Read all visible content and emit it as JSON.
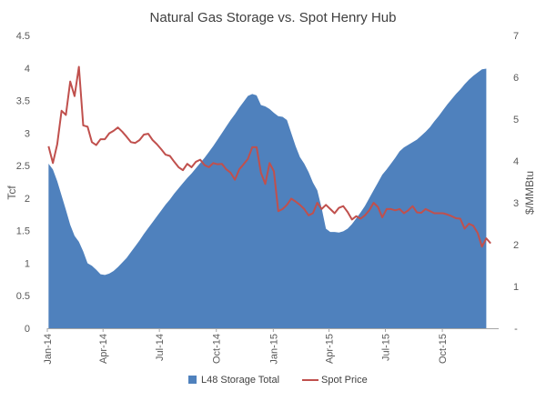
{
  "chart_data": {
    "type": "area+line",
    "title": "Natural Gas Storage vs. Spot Henry Hub",
    "y_left": {
      "label": "Tcf",
      "range": [
        0,
        4.5
      ],
      "ticks": [
        "0",
        "0.5",
        "1",
        "1.5",
        "2",
        "2.5",
        "3",
        "3.5",
        "4",
        "4.5"
      ]
    },
    "y_right": {
      "label": "$/MMBtu",
      "range": [
        0,
        7
      ],
      "ticks": [
        "-",
        "1",
        "2",
        "3",
        "4",
        "5",
        "6",
        "7"
      ]
    },
    "x_axis": {
      "range": [
        "2014-01-01",
        "2015-12-31"
      ],
      "ticks": [
        "Jan-14",
        "Apr-14",
        "Jul-14",
        "Oct-14",
        "Jan-15",
        "Apr-15",
        "Jul-15",
        "Oct-15"
      ],
      "tick_dates": [
        "2014-01-01",
        "2014-04-01",
        "2014-07-01",
        "2014-10-01",
        "2015-01-01",
        "2015-04-01",
        "2015-07-01",
        "2015-10-01"
      ]
    },
    "grid": false,
    "legend_position": "bottom",
    "colors": {
      "storage": "#4f81bd",
      "price": "#c0504d"
    },
    "series": [
      {
        "name": "L48 Storage Total",
        "type": "area",
        "axis": "left",
        "points": [
          [
            "2014-01-03",
            2.53
          ],
          [
            "2014-01-10",
            2.44
          ],
          [
            "2014-01-17",
            2.26
          ],
          [
            "2014-01-24",
            2.04
          ],
          [
            "2014-01-31",
            1.82
          ],
          [
            "2014-02-07",
            1.59
          ],
          [
            "2014-02-14",
            1.42
          ],
          [
            "2014-02-21",
            1.33
          ],
          [
            "2014-02-28",
            1.18
          ],
          [
            "2014-03-07",
            1.0
          ],
          [
            "2014-03-14",
            0.96
          ],
          [
            "2014-03-21",
            0.9
          ],
          [
            "2014-03-28",
            0.83
          ],
          [
            "2014-04-04",
            0.82
          ],
          [
            "2014-04-11",
            0.84
          ],
          [
            "2014-04-18",
            0.88
          ],
          [
            "2014-04-25",
            0.94
          ],
          [
            "2014-05-02",
            1.01
          ],
          [
            "2014-05-09",
            1.08
          ],
          [
            "2014-05-16",
            1.17
          ],
          [
            "2014-05-23",
            1.26
          ],
          [
            "2014-05-30",
            1.35
          ],
          [
            "2014-06-06",
            1.45
          ],
          [
            "2014-06-13",
            1.54
          ],
          [
            "2014-06-20",
            1.63
          ],
          [
            "2014-06-27",
            1.72
          ],
          [
            "2014-07-04",
            1.81
          ],
          [
            "2014-07-11",
            1.9
          ],
          [
            "2014-07-18",
            1.98
          ],
          [
            "2014-07-25",
            2.07
          ],
          [
            "2014-08-01",
            2.15
          ],
          [
            "2014-08-08",
            2.23
          ],
          [
            "2014-08-15",
            2.31
          ],
          [
            "2014-08-22",
            2.38
          ],
          [
            "2014-08-29",
            2.46
          ],
          [
            "2014-09-05",
            2.54
          ],
          [
            "2014-09-12",
            2.62
          ],
          [
            "2014-09-19",
            2.71
          ],
          [
            "2014-09-26",
            2.8
          ],
          [
            "2014-10-03",
            2.9
          ],
          [
            "2014-10-10",
            3.0
          ],
          [
            "2014-10-17",
            3.1
          ],
          [
            "2014-10-24",
            3.2
          ],
          [
            "2014-10-31",
            3.29
          ],
          [
            "2014-11-07",
            3.39
          ],
          [
            "2014-11-14",
            3.48
          ],
          [
            "2014-11-21",
            3.57
          ],
          [
            "2014-11-28",
            3.6
          ],
          [
            "2014-12-05",
            3.58
          ],
          [
            "2014-12-12",
            3.43
          ],
          [
            "2014-12-19",
            3.41
          ],
          [
            "2014-12-26",
            3.37
          ],
          [
            "2015-01-02",
            3.31
          ],
          [
            "2015-01-09",
            3.26
          ],
          [
            "2015-01-16",
            3.25
          ],
          [
            "2015-01-23",
            3.2
          ],
          [
            "2015-01-30",
            3.0
          ],
          [
            "2015-02-06",
            2.8
          ],
          [
            "2015-02-13",
            2.63
          ],
          [
            "2015-02-20",
            2.53
          ],
          [
            "2015-02-27",
            2.4
          ],
          [
            "2015-03-06",
            2.24
          ],
          [
            "2015-03-13",
            2.12
          ],
          [
            "2015-03-20",
            1.85
          ],
          [
            "2015-03-27",
            1.53
          ],
          [
            "2015-04-03",
            1.48
          ],
          [
            "2015-04-10",
            1.48
          ],
          [
            "2015-04-17",
            1.47
          ],
          [
            "2015-04-24",
            1.49
          ],
          [
            "2015-05-01",
            1.53
          ],
          [
            "2015-05-08",
            1.6
          ],
          [
            "2015-05-15",
            1.69
          ],
          [
            "2015-05-22",
            1.78
          ],
          [
            "2015-05-29",
            1.88
          ],
          [
            "2015-06-05",
            2.0
          ],
          [
            "2015-06-12",
            2.12
          ],
          [
            "2015-06-19",
            2.24
          ],
          [
            "2015-06-26",
            2.36
          ],
          [
            "2015-07-03",
            2.44
          ],
          [
            "2015-07-10",
            2.53
          ],
          [
            "2015-07-17",
            2.62
          ],
          [
            "2015-07-24",
            2.72
          ],
          [
            "2015-07-31",
            2.78
          ],
          [
            "2015-08-07",
            2.82
          ],
          [
            "2015-08-14",
            2.86
          ],
          [
            "2015-08-21",
            2.9
          ],
          [
            "2015-08-28",
            2.96
          ],
          [
            "2015-09-04",
            3.02
          ],
          [
            "2015-09-11",
            3.09
          ],
          [
            "2015-09-18",
            3.18
          ],
          [
            "2015-09-25",
            3.26
          ],
          [
            "2015-10-02",
            3.35
          ],
          [
            "2015-10-09",
            3.44
          ],
          [
            "2015-10-16",
            3.52
          ],
          [
            "2015-10-23",
            3.6
          ],
          [
            "2015-10-30",
            3.67
          ],
          [
            "2015-11-06",
            3.75
          ],
          [
            "2015-11-13",
            3.82
          ],
          [
            "2015-11-20",
            3.88
          ],
          [
            "2015-11-27",
            3.93
          ],
          [
            "2015-12-04",
            3.98
          ],
          [
            "2015-12-11",
            3.99
          ]
        ]
      },
      {
        "name": "Spot Price",
        "type": "line",
        "axis": "right",
        "points": [
          [
            "2014-01-03",
            4.35
          ],
          [
            "2014-01-10",
            3.95
          ],
          [
            "2014-01-17",
            4.4
          ],
          [
            "2014-01-24",
            5.2
          ],
          [
            "2014-01-31",
            5.1
          ],
          [
            "2014-02-07",
            5.9
          ],
          [
            "2014-02-14",
            5.55
          ],
          [
            "2014-02-21",
            6.25
          ],
          [
            "2014-02-28",
            4.85
          ],
          [
            "2014-03-07",
            4.82
          ],
          [
            "2014-03-14",
            4.45
          ],
          [
            "2014-03-21",
            4.38
          ],
          [
            "2014-03-28",
            4.52
          ],
          [
            "2014-04-04",
            4.52
          ],
          [
            "2014-04-11",
            4.66
          ],
          [
            "2014-04-18",
            4.72
          ],
          [
            "2014-04-25",
            4.8
          ],
          [
            "2014-05-02",
            4.7
          ],
          [
            "2014-05-09",
            4.58
          ],
          [
            "2014-05-16",
            4.45
          ],
          [
            "2014-05-23",
            4.43
          ],
          [
            "2014-05-30",
            4.5
          ],
          [
            "2014-06-06",
            4.63
          ],
          [
            "2014-06-13",
            4.65
          ],
          [
            "2014-06-20",
            4.5
          ],
          [
            "2014-06-27",
            4.4
          ],
          [
            "2014-07-04",
            4.28
          ],
          [
            "2014-07-11",
            4.15
          ],
          [
            "2014-07-18",
            4.12
          ],
          [
            "2014-07-25",
            3.98
          ],
          [
            "2014-08-01",
            3.85
          ],
          [
            "2014-08-08",
            3.78
          ],
          [
            "2014-08-15",
            3.93
          ],
          [
            "2014-08-22",
            3.85
          ],
          [
            "2014-08-29",
            3.98
          ],
          [
            "2014-09-05",
            4.03
          ],
          [
            "2014-09-12",
            3.9
          ],
          [
            "2014-09-19",
            3.85
          ],
          [
            "2014-09-26",
            3.95
          ],
          [
            "2014-10-03",
            3.92
          ],
          [
            "2014-10-10",
            3.93
          ],
          [
            "2014-10-17",
            3.8
          ],
          [
            "2014-10-24",
            3.72
          ],
          [
            "2014-10-31",
            3.55
          ],
          [
            "2014-11-07",
            3.8
          ],
          [
            "2014-11-14",
            3.92
          ],
          [
            "2014-11-21",
            4.05
          ],
          [
            "2014-11-28",
            4.33
          ],
          [
            "2014-12-05",
            4.33
          ],
          [
            "2014-12-12",
            3.72
          ],
          [
            "2014-12-19",
            3.45
          ],
          [
            "2014-12-26",
            3.95
          ],
          [
            "2015-01-02",
            3.75
          ],
          [
            "2015-01-09",
            2.8
          ],
          [
            "2015-01-16",
            2.85
          ],
          [
            "2015-01-23",
            2.95
          ],
          [
            "2015-01-30",
            3.1
          ],
          [
            "2015-02-06",
            3.03
          ],
          [
            "2015-02-13",
            2.95
          ],
          [
            "2015-02-20",
            2.85
          ],
          [
            "2015-02-27",
            2.7
          ],
          [
            "2015-03-06",
            2.75
          ],
          [
            "2015-03-13",
            3.0
          ],
          [
            "2015-03-20",
            2.85
          ],
          [
            "2015-03-27",
            2.95
          ],
          [
            "2015-04-03",
            2.85
          ],
          [
            "2015-04-10",
            2.75
          ],
          [
            "2015-04-17",
            2.88
          ],
          [
            "2015-04-24",
            2.92
          ],
          [
            "2015-05-01",
            2.78
          ],
          [
            "2015-05-08",
            2.6
          ],
          [
            "2015-05-15",
            2.68
          ],
          [
            "2015-05-22",
            2.62
          ],
          [
            "2015-05-29",
            2.7
          ],
          [
            "2015-06-05",
            2.82
          ],
          [
            "2015-06-12",
            3.0
          ],
          [
            "2015-06-19",
            2.9
          ],
          [
            "2015-06-26",
            2.65
          ],
          [
            "2015-07-03",
            2.85
          ],
          [
            "2015-07-10",
            2.85
          ],
          [
            "2015-07-17",
            2.82
          ],
          [
            "2015-07-24",
            2.85
          ],
          [
            "2015-07-31",
            2.75
          ],
          [
            "2015-08-07",
            2.82
          ],
          [
            "2015-08-14",
            2.92
          ],
          [
            "2015-08-21",
            2.77
          ],
          [
            "2015-08-28",
            2.76
          ],
          [
            "2015-09-04",
            2.85
          ],
          [
            "2015-09-11",
            2.8
          ],
          [
            "2015-09-18",
            2.75
          ],
          [
            "2015-09-25",
            2.75
          ],
          [
            "2015-10-02",
            2.75
          ],
          [
            "2015-10-09",
            2.72
          ],
          [
            "2015-10-16",
            2.68
          ],
          [
            "2015-10-23",
            2.63
          ],
          [
            "2015-10-30",
            2.62
          ],
          [
            "2015-11-06",
            2.38
          ],
          [
            "2015-11-13",
            2.5
          ],
          [
            "2015-11-20",
            2.45
          ],
          [
            "2015-11-27",
            2.28
          ],
          [
            "2015-12-04",
            1.95
          ],
          [
            "2015-12-11",
            2.15
          ],
          [
            "2015-12-18",
            2.03
          ]
        ]
      }
    ]
  }
}
